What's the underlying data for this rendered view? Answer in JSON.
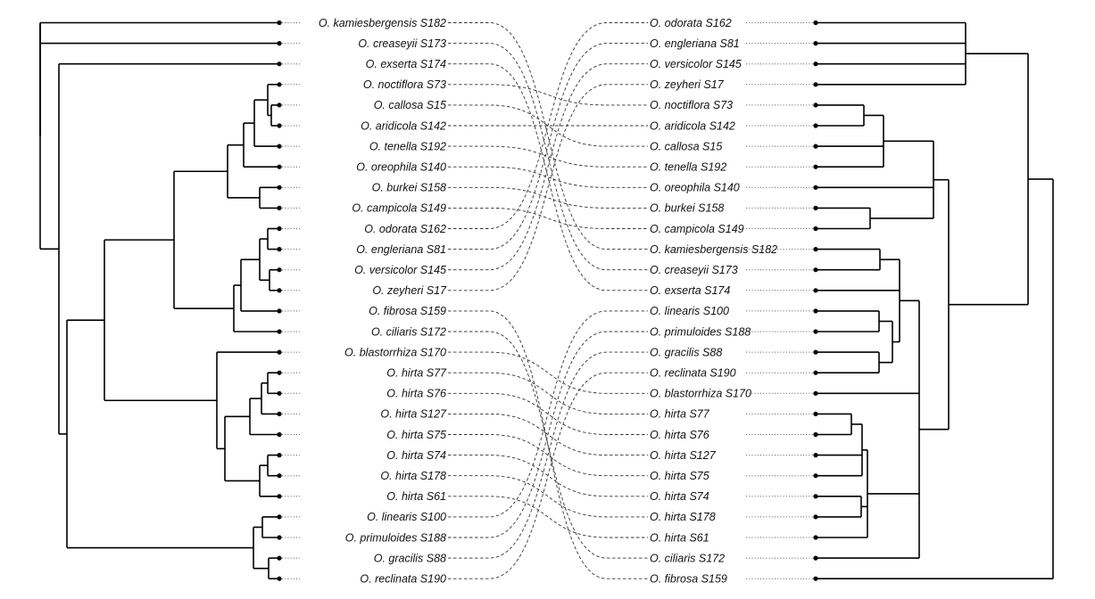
{
  "left_taxa": [
    "O. kamiesbergensis S182",
    "O. creaseyii S173",
    "O. exserta S174",
    "O. noctiflora S73",
    "O. callosa S15",
    "O. aridicola S142",
    "O. tenella S192",
    "O. oreophila S140",
    "O. burkei S158",
    "O. campicola S149",
    "O. odorata S162",
    "O. engleriana S81",
    "O. versicolor S145",
    "O. zeyheri S17",
    "O. fibrosa S159",
    "O. ciliaris S172",
    "O. blastorrhiza S170",
    "O. hirta S77",
    "O. hirta S76",
    "O. hirta S127",
    "O. hirta S75",
    "O. hirta S74",
    "O. hirta S178",
    "O. hirta S61",
    "O. linearis S100",
    "O. primuloides S188",
    "O. gracilis S88",
    "O. reclinata S190"
  ],
  "right_taxa": [
    "O. odorata S162",
    "O. engleriana S81",
    "O. versicolor S145",
    "O. zeyheri S17",
    "O. noctiflora S73",
    "O. aridicola S142",
    "O. callosa S15",
    "O. tenella S192",
    "O. oreophila S140",
    "O. burkei S158",
    "O. campicola S149",
    "O. kamiesbergensis S182",
    "O. creaseyii S173",
    "O. exserta S174",
    "O. linearis S100",
    "O. primuloides S188",
    "O. gracilis S88",
    "O. reclinata S190",
    "O. blastorrhiza S170",
    "O. hirta S77",
    "O. hirta S76",
    "O. hirta S127",
    "O. hirta S75",
    "O. hirta S74",
    "O. hirta S178",
    "O. hirta S61",
    "O. ciliaris S172",
    "O. fibrosa S159"
  ],
  "colors": {
    "tree": "#000000",
    "connector": "#333333",
    "leader": "#555555",
    "background": "#ffffff"
  }
}
